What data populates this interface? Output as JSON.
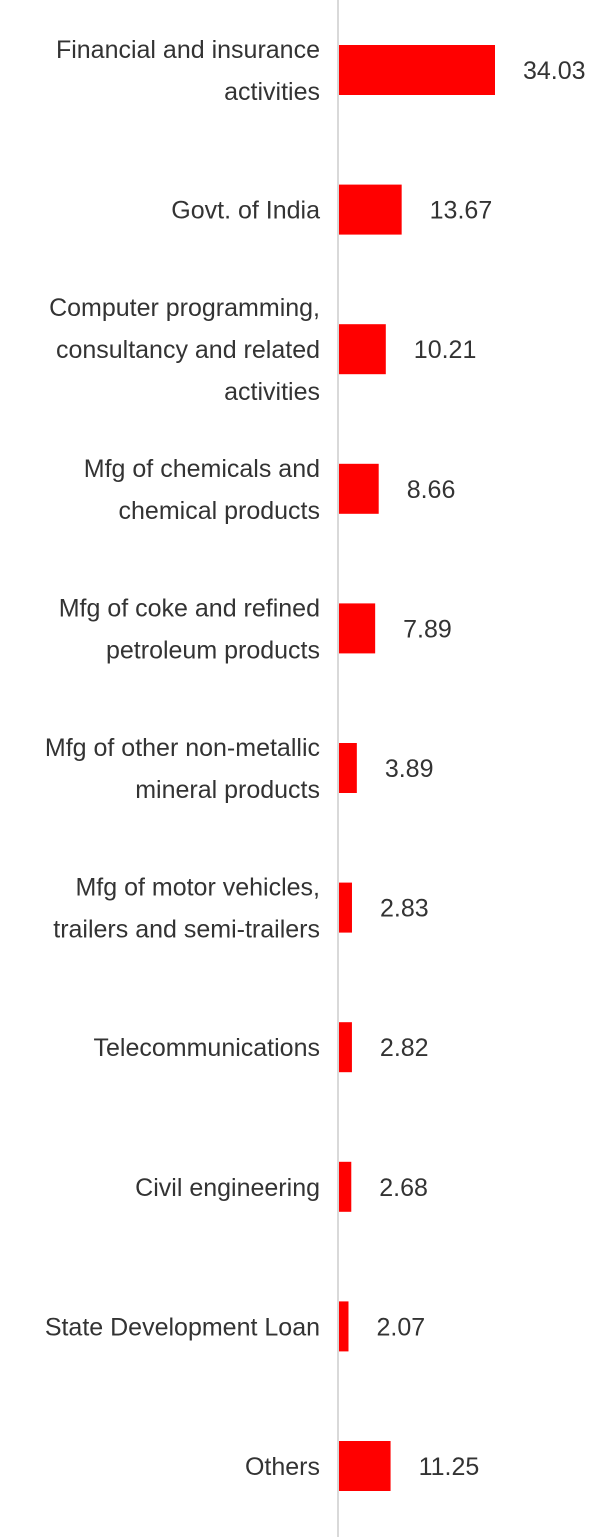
{
  "chart_data": {
    "type": "bar",
    "orientation": "horizontal",
    "title": "",
    "xlabel": "",
    "ylabel": "",
    "categories": [
      [
        "Financial and insurance",
        "activities"
      ],
      [
        "Govt. of India"
      ],
      [
        "Computer programming,",
        "consultancy and related",
        "activities"
      ],
      [
        "Mfg of chemicals and",
        "chemical products"
      ],
      [
        "Mfg of coke and refined",
        "petroleum products"
      ],
      [
        "Mfg of other non-metallic",
        "mineral products"
      ],
      [
        "Mfg of motor vehicles,",
        "trailers and semi-trailers"
      ],
      [
        "Telecommunications"
      ],
      [
        "Civil engineering"
      ],
      [
        "State Development Loan"
      ],
      [
        "Others"
      ]
    ],
    "values": [
      34.03,
      13.67,
      10.21,
      8.66,
      7.89,
      3.89,
      2.83,
      2.82,
      2.68,
      2.07,
      11.25
    ],
    "value_labels": [
      "34.03",
      "13.67",
      "10.21",
      "8.66",
      "7.89",
      "3.89",
      "2.83",
      "2.82",
      "2.68",
      "2.07",
      "11.25"
    ],
    "xlim": [
      0,
      34.03
    ],
    "grid": false,
    "legend": "none",
    "bar_color": "#ff0000",
    "axis_color": "#d9d9d9",
    "text_color": "#333333"
  }
}
